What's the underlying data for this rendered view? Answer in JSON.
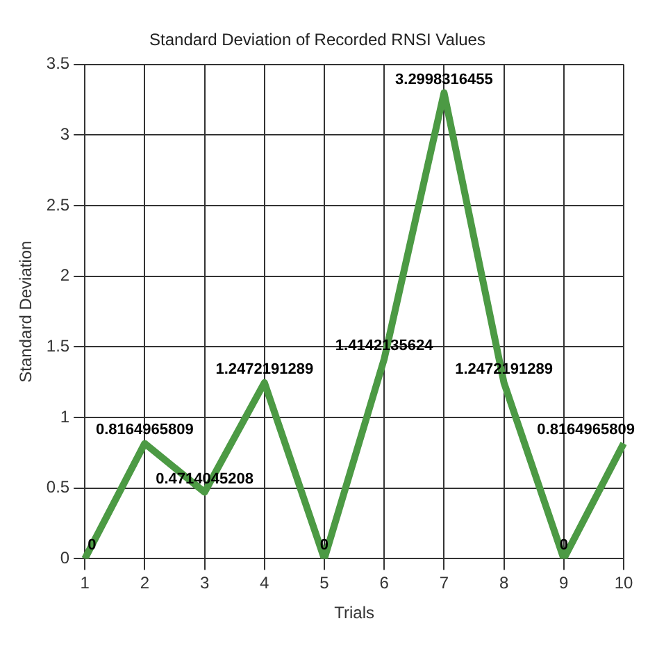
{
  "chart_data": {
    "type": "line",
    "title": "Standard Deviation of Recorded RNSI Values",
    "xlabel": "Trials",
    "ylabel": "Standard Deviation",
    "categories": [
      "1",
      "2",
      "3",
      "4",
      "5",
      "6",
      "7",
      "8",
      "9",
      "10"
    ],
    "series": [
      {
        "color": "#4c9a44",
        "values": [
          0,
          0.8164965809,
          0.4714045208,
          1.2472191289,
          0,
          1.4142135624,
          3.2998316455,
          1.2472191289,
          0,
          0.8164965809
        ]
      }
    ],
    "ylim": [
      0,
      3.5
    ],
    "yticks": [
      0,
      0.5,
      1,
      1.5,
      2,
      2.5,
      3,
      3.5
    ],
    "grid": true,
    "legend": false,
    "marker": "none",
    "line_style": "solid",
    "data_labels": true
  }
}
